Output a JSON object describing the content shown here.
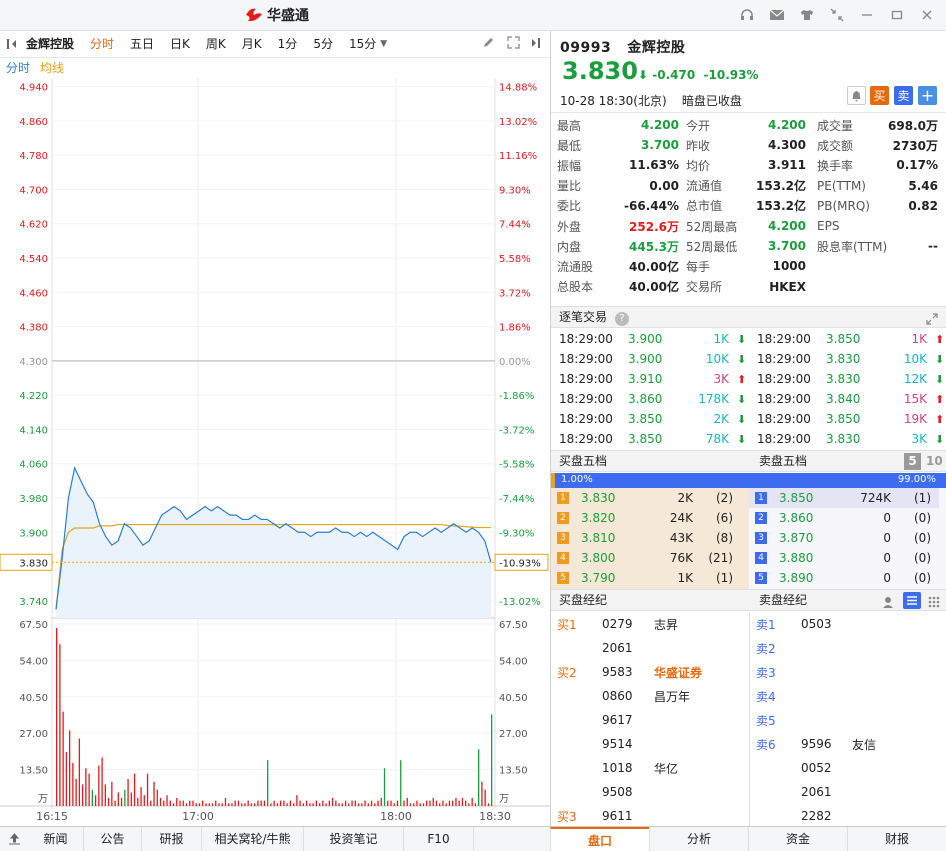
{
  "app": {
    "title": "华盛通"
  },
  "toolbar": {
    "stock_name": "金辉控股",
    "periods": [
      "分时",
      "五日",
      "日K",
      "周K",
      "月K",
      "1分",
      "5分",
      "15分"
    ],
    "active_period": "分时"
  },
  "chart_sub": {
    "line1": "分时",
    "line2": "均线"
  },
  "chart_data": {
    "type": "line",
    "y_price_labels": [
      "4.940",
      "4.860",
      "4.780",
      "4.700",
      "4.620",
      "4.540",
      "4.460",
      "4.380",
      "4.300",
      "4.220",
      "4.140",
      "4.060",
      "3.980",
      "3.900",
      "3.740"
    ],
    "y_price_values": [
      4.94,
      4.86,
      4.78,
      4.7,
      4.62,
      4.54,
      4.46,
      4.38,
      4.3,
      4.22,
      4.14,
      4.06,
      3.98,
      3.9,
      3.74
    ],
    "y_pct_labels": [
      "14.88%",
      "13.02%",
      "11.16%",
      "9.30%",
      "7.44%",
      "5.58%",
      "3.72%",
      "1.86%",
      "0.00%",
      "-1.86%",
      "-3.72%",
      "-5.58%",
      "-7.44%",
      "-9.30%",
      "-13.02%"
    ],
    "prev_close": 4.3,
    "current_price_label": "3.830",
    "current_pct_label": "-10.93%",
    "price_ylim": [
      3.7,
      4.96
    ],
    "x_ticks": [
      "16:15",
      "17:00",
      "18:00",
      "18:30"
    ],
    "price_series": [
      3.72,
      3.84,
      3.98,
      4.05,
      4.02,
      3.99,
      3.97,
      3.92,
      3.89,
      3.87,
      3.88,
      3.92,
      3.91,
      3.89,
      3.87,
      3.88,
      3.91,
      3.94,
      3.95,
      3.96,
      3.95,
      3.93,
      3.94,
      3.95,
      3.96,
      3.95,
      3.96,
      3.95,
      3.94,
      3.94,
      3.93,
      3.93,
      3.94,
      3.93,
      3.93,
      3.92,
      3.91,
      3.92,
      3.91,
      3.9,
      3.9,
      3.89,
      3.9,
      3.9,
      3.9,
      3.91,
      3.9,
      3.9,
      3.89,
      3.9,
      3.89,
      3.9,
      3.89,
      3.88,
      3.87,
      3.86,
      3.89,
      3.9,
      3.9,
      3.89,
      3.9,
      3.91,
      3.9,
      3.91,
      3.92,
      3.91,
      3.9,
      3.91,
      3.9,
      3.88,
      3.83
    ],
    "avg_series": [
      3.72,
      3.86,
      3.9,
      3.91,
      3.91,
      3.91,
      3.91,
      3.915,
      3.915,
      3.915,
      3.918,
      3.918,
      3.918,
      3.918,
      3.918,
      3.918,
      3.918,
      3.918,
      3.918,
      3.918,
      3.918,
      3.918,
      3.918,
      3.918,
      3.918,
      3.918,
      3.918,
      3.918,
      3.918,
      3.918,
      3.918,
      3.918,
      3.918,
      3.918,
      3.918,
      3.918,
      3.918,
      3.918,
      3.918,
      3.918,
      3.918,
      3.918,
      3.918,
      3.918,
      3.918,
      3.918,
      3.918,
      3.918,
      3.918,
      3.918,
      3.918,
      3.918,
      3.918,
      3.918,
      3.918,
      3.918,
      3.918,
      3.918,
      3.918,
      3.918,
      3.918,
      3.918,
      3.918,
      3.916,
      3.915,
      3.914,
      3.913,
      3.912,
      3.911,
      3.911,
      3.911
    ],
    "volume_labels_left": [
      "67.50",
      "54.00",
      "40.50",
      "27.00",
      "13.50",
      "万"
    ],
    "volume_labels_right": [
      "67.50",
      "54.00",
      "40.50",
      "27.00",
      "13.50",
      "万"
    ],
    "volume_ylim": [
      0,
      67.5
    ],
    "volume_series": [
      66,
      60,
      35,
      20,
      28,
      16,
      10,
      25,
      8,
      14,
      12,
      6,
      4,
      15,
      18,
      8,
      3,
      9,
      2,
      5,
      3,
      6,
      10,
      5,
      12,
      3,
      7,
      4,
      12,
      2,
      9,
      6,
      3,
      2,
      4,
      2,
      1,
      3,
      2,
      2,
      1,
      2,
      2,
      1,
      1,
      2,
      1,
      1,
      1,
      2,
      1,
      1,
      3,
      1,
      1,
      2,
      2,
      1,
      1,
      2,
      1,
      1,
      2,
      2,
      2,
      17,
      1,
      2,
      1,
      2,
      2,
      1,
      2,
      1,
      4,
      2,
      1,
      2,
      1,
      1,
      2,
      1,
      2,
      1,
      2,
      3,
      2,
      1,
      1,
      2,
      1,
      2,
      2,
      1,
      1,
      2,
      1,
      2,
      1,
      2,
      3,
      14,
      2,
      2,
      1,
      2,
      17,
      2,
      3,
      1,
      1,
      2,
      1,
      1,
      2,
      2,
      3,
      2,
      1,
      2,
      1,
      2,
      2,
      3,
      2,
      3,
      2,
      1,
      3,
      1,
      21,
      9,
      6,
      1,
      34
    ],
    "volume_colors": [
      "r",
      "r",
      "r",
      "r",
      "r",
      "r",
      "r",
      "r",
      "r",
      "r",
      "r",
      "g",
      "r",
      "r",
      "r",
      "r",
      "r",
      "r",
      "r",
      "r",
      "r",
      "g",
      "r",
      "r",
      "r",
      "r",
      "r",
      "r",
      "r",
      "r",
      "r",
      "r",
      "r",
      "r",
      "r",
      "r",
      "r",
      "r",
      "r",
      "r",
      "r",
      "r",
      "r",
      "r",
      "r",
      "r",
      "r",
      "r",
      "r",
      "r",
      "r",
      "r",
      "r",
      "r",
      "r",
      "r",
      "r",
      "r",
      "r",
      "r",
      "r",
      "r",
      "r",
      "r",
      "r",
      "g",
      "r",
      "r",
      "r",
      "r",
      "r",
      "r",
      "r",
      "r",
      "r",
      "r",
      "r",
      "r",
      "r",
      "r",
      "r",
      "r",
      "r",
      "r",
      "r",
      "r",
      "r",
      "r",
      "r",
      "r",
      "r",
      "r",
      "r",
      "r",
      "r",
      "r",
      "r",
      "r",
      "r",
      "r",
      "r",
      "g",
      "r",
      "r",
      "r",
      "r",
      "g",
      "r",
      "r",
      "r",
      "r",
      "r",
      "r",
      "r",
      "r",
      "r",
      "r",
      "r",
      "r",
      "r",
      "r",
      "r",
      "r",
      "r",
      "r",
      "r",
      "r",
      "r",
      "r",
      "r",
      "g",
      "r",
      "r",
      "r",
      "g"
    ]
  },
  "quote": {
    "code": "09993",
    "name": "金辉控股",
    "price": "3.830",
    "change": "-0.470",
    "change_pct": "-10.93%",
    "datetime": "10-28  18:30(北京)",
    "status": "暗盘已收盘",
    "buy_label": "买",
    "sell_label": "卖",
    "add_label": "+"
  },
  "stats": [
    [
      {
        "l": "最高",
        "v": "4.200",
        "c": "green"
      },
      {
        "l": "今开",
        "v": "4.200",
        "c": "green"
      },
      {
        "l": "成交量",
        "v": "698.0万",
        "c": ""
      }
    ],
    [
      {
        "l": "最低",
        "v": "3.700",
        "c": "green"
      },
      {
        "l": "昨收",
        "v": "4.300",
        "c": ""
      },
      {
        "l": "成交额",
        "v": "2730万",
        "c": ""
      }
    ],
    [
      {
        "l": "振幅",
        "v": "11.63%",
        "c": ""
      },
      {
        "l": "均价",
        "v": "3.911",
        "c": ""
      },
      {
        "l": "换手率",
        "v": "0.17%",
        "c": ""
      }
    ],
    [
      {
        "l": "量比",
        "v": "0.00",
        "c": ""
      },
      {
        "l": "流通值",
        "v": "153.2亿",
        "c": ""
      },
      {
        "l": "PE(TTM)",
        "v": "5.46",
        "c": ""
      }
    ],
    [
      {
        "l": "委比",
        "v": "-66.44%",
        "c": ""
      },
      {
        "l": "总市值",
        "v": "153.2亿",
        "c": ""
      },
      {
        "l": "PB(MRQ)",
        "v": "0.82",
        "c": ""
      }
    ],
    [
      {
        "l": "外盘",
        "v": "252.6万",
        "c": "red"
      },
      {
        "l": "52周最高",
        "v": "4.200",
        "c": "green"
      },
      {
        "l": "EPS",
        "v": "",
        "c": ""
      }
    ],
    [
      {
        "l": "内盘",
        "v": "445.3万",
        "c": "green"
      },
      {
        "l": "52周最低",
        "v": "3.700",
        "c": "green"
      },
      {
        "l": "股息率(TTM)",
        "v": "--",
        "c": ""
      }
    ],
    [
      {
        "l": "流通股",
        "v": "40.00亿",
        "c": ""
      },
      {
        "l": "每手",
        "v": "1000",
        "c": ""
      },
      {
        "l": "",
        "v": "",
        "c": ""
      }
    ],
    [
      {
        "l": "总股本",
        "v": "40.00亿",
        "c": ""
      },
      {
        "l": "交易所",
        "v": "HKEX",
        "c": ""
      },
      {
        "l": "",
        "v": "",
        "c": ""
      }
    ]
  ],
  "ticks": {
    "title": "逐笔交易",
    "left": [
      {
        "t": "18:29:00",
        "p": "3.900",
        "v": "1K",
        "vc": "cyan",
        "d": "down"
      },
      {
        "t": "18:29:00",
        "p": "3.900",
        "v": "10K",
        "vc": "cyan",
        "d": "down"
      },
      {
        "t": "18:29:00",
        "p": "3.910",
        "v": "3K",
        "vc": "mag",
        "d": "up"
      },
      {
        "t": "18:29:00",
        "p": "3.860",
        "v": "178K",
        "vc": "cyan",
        "d": "down"
      },
      {
        "t": "18:29:00",
        "p": "3.850",
        "v": "2K",
        "vc": "cyan",
        "d": "down"
      },
      {
        "t": "18:29:00",
        "p": "3.850",
        "v": "78K",
        "vc": "cyan",
        "d": "down"
      }
    ],
    "right": [
      {
        "t": "18:29:00",
        "p": "3.850",
        "v": "1K",
        "vc": "mag",
        "d": "up"
      },
      {
        "t": "18:29:00",
        "p": "3.830",
        "v": "10K",
        "vc": "cyan",
        "d": "down"
      },
      {
        "t": "18:29:00",
        "p": "3.830",
        "v": "12K",
        "vc": "cyan",
        "d": "down"
      },
      {
        "t": "18:29:00",
        "p": "3.840",
        "v": "15K",
        "vc": "mag",
        "d": "up"
      },
      {
        "t": "18:29:00",
        "p": "3.850",
        "v": "19K",
        "vc": "mag",
        "d": "up"
      },
      {
        "t": "18:29:00",
        "p": "3.830",
        "v": "3K",
        "vc": "cyan",
        "d": "down"
      }
    ]
  },
  "book": {
    "bid_title": "买盘五档",
    "ask_title": "卖盘五档",
    "level_a": "5",
    "level_b": "10",
    "bid_pct": "1.00%",
    "ask_pct": "99.00%",
    "bid_fraction": 0.01,
    "bids": [
      {
        "n": "1",
        "p": "3.830",
        "v": "2K",
        "c": "(2)"
      },
      {
        "n": "2",
        "p": "3.820",
        "v": "24K",
        "c": "(6)"
      },
      {
        "n": "3",
        "p": "3.810",
        "v": "43K",
        "c": "(8)"
      },
      {
        "n": "4",
        "p": "3.800",
        "v": "76K",
        "c": "(21)"
      },
      {
        "n": "5",
        "p": "3.790",
        "v": "1K",
        "c": "(1)"
      }
    ],
    "asks": [
      {
        "n": "1",
        "p": "3.850",
        "v": "724K",
        "c": "(1)"
      },
      {
        "n": "2",
        "p": "3.860",
        "v": "0",
        "c": "(0)"
      },
      {
        "n": "3",
        "p": "3.870",
        "v": "0",
        "c": "(0)"
      },
      {
        "n": "4",
        "p": "3.880",
        "v": "0",
        "c": "(0)"
      },
      {
        "n": "5",
        "p": "3.890",
        "v": "0",
        "c": "(0)"
      }
    ]
  },
  "brokers": {
    "bid_title": "买盘经纪",
    "ask_title": "卖盘经纪",
    "bid_rows": [
      {
        "lvl": "买1",
        "id": "0279",
        "n": "志昇",
        "hl": false
      },
      {
        "lvl": "",
        "id": "2061",
        "n": "",
        "hl": false
      },
      {
        "lvl": "买2",
        "id": "9583",
        "n": "华盛证券",
        "hl": true
      },
      {
        "lvl": "",
        "id": "0860",
        "n": "昌万年",
        "hl": false
      },
      {
        "lvl": "",
        "id": "9617",
        "n": "",
        "hl": false
      },
      {
        "lvl": "",
        "id": "9514",
        "n": "",
        "hl": false
      },
      {
        "lvl": "",
        "id": "1018",
        "n": "华亿",
        "hl": false
      },
      {
        "lvl": "",
        "id": "9508",
        "n": "",
        "hl": false
      },
      {
        "lvl": "买3",
        "id": "9611",
        "n": "",
        "hl": false
      }
    ],
    "ask_rows": [
      {
        "lvl": "卖1",
        "id": "0503",
        "n": ""
      },
      {
        "lvl": "卖2",
        "id": "",
        "n": ""
      },
      {
        "lvl": "卖3",
        "id": "",
        "n": ""
      },
      {
        "lvl": "卖4",
        "id": "",
        "n": ""
      },
      {
        "lvl": "卖5",
        "id": "",
        "n": ""
      },
      {
        "lvl": "卖6",
        "id": "9596",
        "n": "友信"
      },
      {
        "lvl": "",
        "id": "0052",
        "n": ""
      },
      {
        "lvl": "",
        "id": "2061",
        "n": ""
      },
      {
        "lvl": "",
        "id": "2282",
        "n": ""
      }
    ]
  },
  "bottom": {
    "left_tabs": [
      "新闻",
      "公告",
      "研报",
      "相关窝轮/牛熊",
      "投资笔记",
      "F10"
    ],
    "right_tabs": [
      "盘口",
      "分析",
      "资金",
      "财报"
    ],
    "active_right": "盘口"
  },
  "colors": {
    "up": "#e21c1c",
    "down": "#1a9d3c",
    "accent": "#e8690c",
    "price_line": "#2a7fd4",
    "avg_line": "#e8a317",
    "bid_bar": "#f5e8d6",
    "ask_bar": "#e4e4f5",
    "depth_blue": "#3d6cf0"
  }
}
